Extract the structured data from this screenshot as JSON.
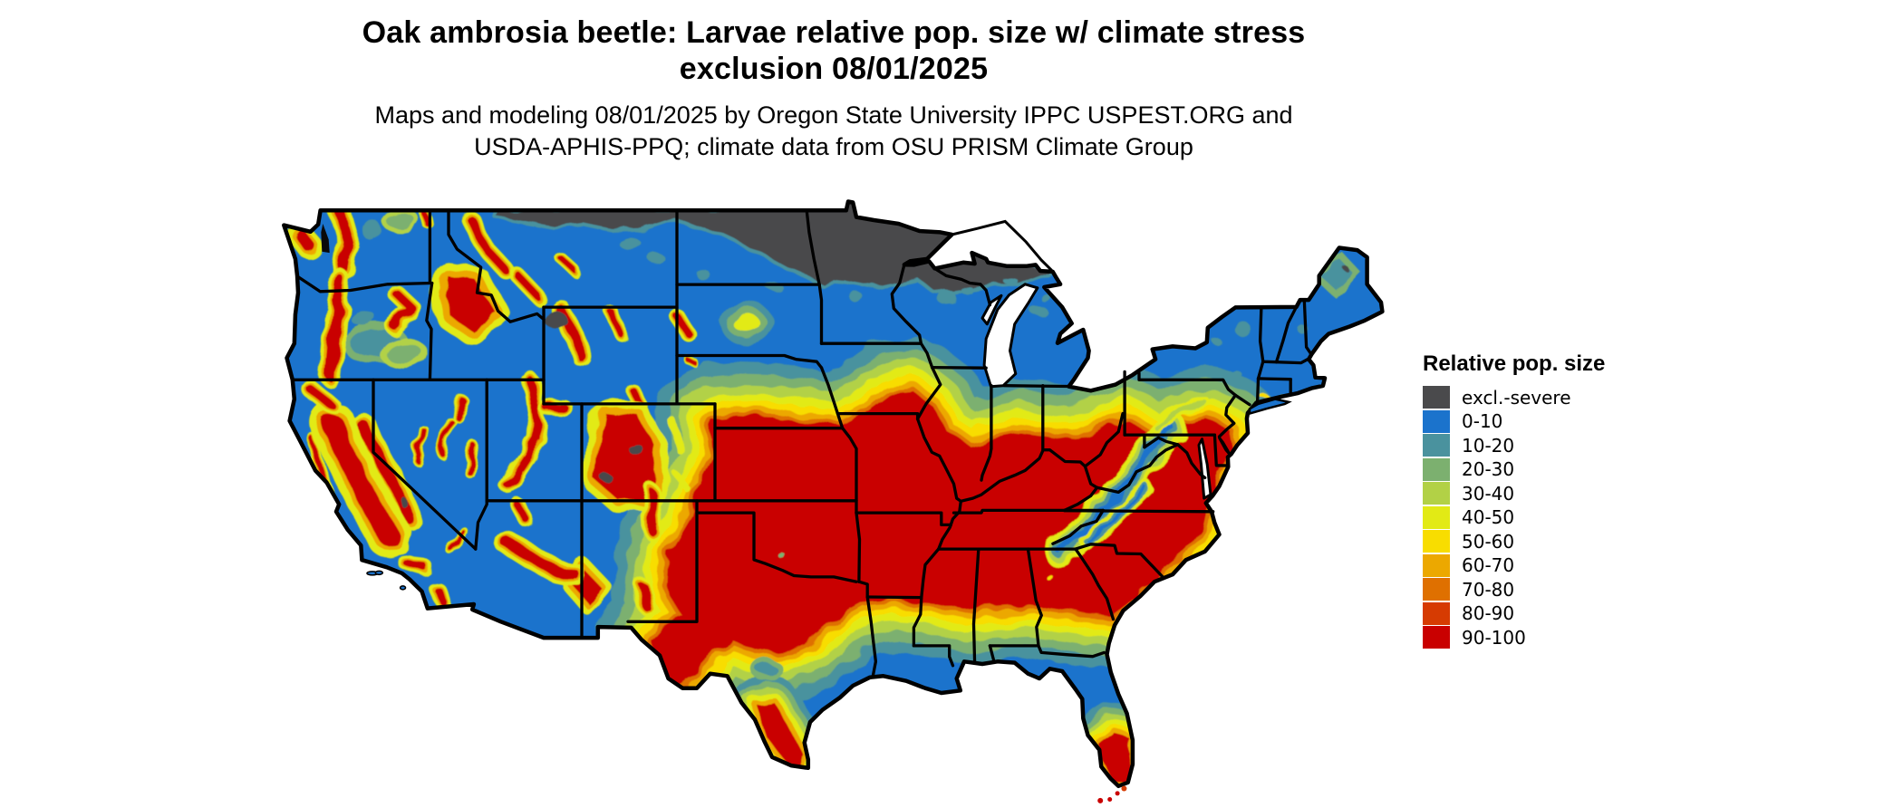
{
  "header": {
    "title_line1": "Oak ambrosia beetle: Larvae relative pop. size w/ climate stress",
    "title_line2": "exclusion 08/01/2025",
    "subtitle_line1": "Maps and modeling 08/01/2025 by Oregon State University IPPC USPEST.ORG and",
    "subtitle_line2": "USDA-APHIS-PPQ; climate data from OSU PRISM Climate Group"
  },
  "legend": {
    "title": "Relative pop. size",
    "items": [
      {
        "label": "excl.-severe",
        "color": "#4a4a4c"
      },
      {
        "label": "0-10",
        "color": "#1b73cc"
      },
      {
        "label": "10-20",
        "color": "#4a929e"
      },
      {
        "label": "20-30",
        "color": "#7cb06f"
      },
      {
        "label": "30-40",
        "color": "#b2d146"
      },
      {
        "label": "40-50",
        "color": "#e2ea15"
      },
      {
        "label": "50-60",
        "color": "#f8dd00"
      },
      {
        "label": "60-70",
        "color": "#eca800"
      },
      {
        "label": "70-80",
        "color": "#df7000"
      },
      {
        "label": "80-90",
        "color": "#d63b02"
      },
      {
        "label": "90-100",
        "color": "#c90000"
      }
    ]
  },
  "map": {
    "description": "Continental US raster map, classified by relative population size",
    "background": "#ffffff",
    "water_and_canada": "#ffffff",
    "state_border_color": "#000000",
    "base_color": "#1b73cc"
  }
}
